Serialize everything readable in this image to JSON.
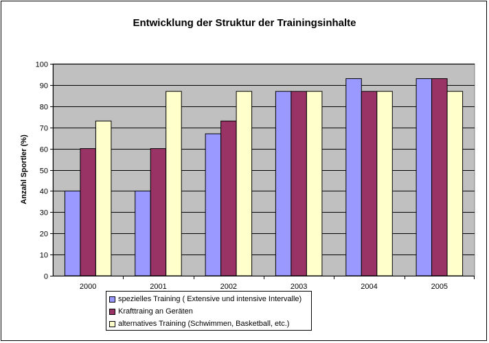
{
  "chart_data": {
    "type": "bar",
    "title": "Entwicklung der Struktur der Trainingsinhalte",
    "xlabel": "",
    "ylabel": "Anzahl Sportler (%)",
    "ylim": [
      0,
      100
    ],
    "yticks": [
      0,
      10,
      20,
      30,
      40,
      50,
      60,
      70,
      80,
      90,
      100
    ],
    "grid": true,
    "legend_position": "bottom-left",
    "categories": [
      "2000",
      "2001",
      "2002",
      "2003",
      "2004",
      "2005"
    ],
    "series": [
      {
        "name": "spezielles Training ( Extensive und intensive Intervalle)",
        "color": "#9999ff",
        "values": [
          40,
          40,
          67,
          87,
          93,
          93
        ]
      },
      {
        "name": "Krafttraing an Geräten",
        "color": "#993366",
        "values": [
          60,
          60,
          73,
          87,
          87,
          93
        ]
      },
      {
        "name": "alternatives Training (Schwimmen, Basketball, etc.)",
        "color": "#ffffcc",
        "values": [
          73,
          87,
          87,
          87,
          87,
          87
        ]
      }
    ],
    "plot_background": "#c0c0c0"
  }
}
